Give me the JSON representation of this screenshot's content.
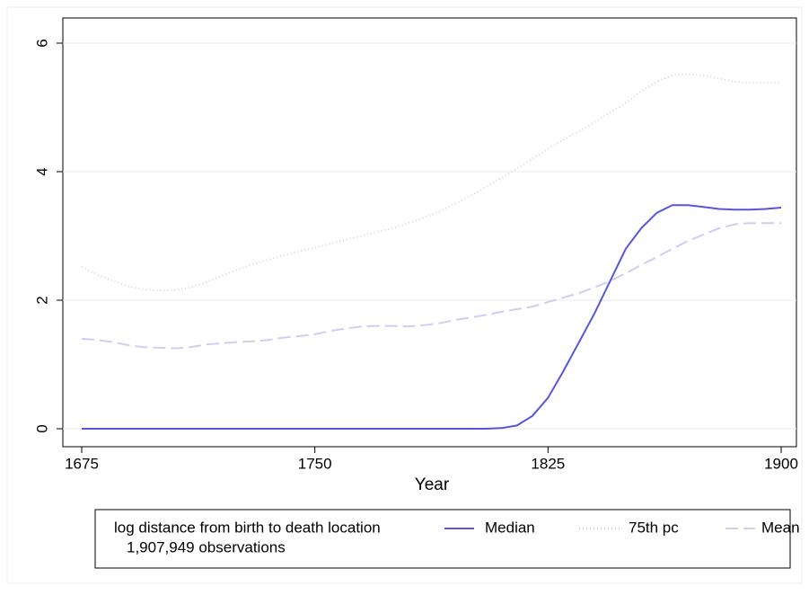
{
  "chart_data": {
    "type": "line",
    "x_label": "Year",
    "x": [
      1675,
      1680,
      1685,
      1690,
      1695,
      1700,
      1705,
      1710,
      1715,
      1720,
      1725,
      1730,
      1735,
      1740,
      1745,
      1750,
      1755,
      1760,
      1765,
      1770,
      1775,
      1780,
      1785,
      1790,
      1795,
      1800,
      1805,
      1810,
      1815,
      1820,
      1825,
      1830,
      1835,
      1840,
      1845,
      1850,
      1855,
      1860,
      1865,
      1870,
      1875,
      1880,
      1885,
      1890,
      1895,
      1900
    ],
    "series": [
      {
        "name": "Median",
        "color": "#5656dc",
        "style": "solid",
        "values": [
          0,
          0,
          0,
          0,
          0,
          0,
          0,
          0,
          0,
          0,
          0,
          0,
          0,
          0,
          0,
          0,
          0,
          0,
          0,
          0,
          0,
          0,
          0,
          0,
          0,
          0,
          0,
          0.01,
          0.05,
          0.2,
          0.48,
          0.9,
          1.35,
          1.8,
          2.3,
          2.8,
          3.12,
          3.36,
          3.48,
          3.48,
          3.45,
          3.42,
          3.41,
          3.41,
          3.42,
          3.44
        ]
      },
      {
        "name": "75th pc",
        "color": "#d4d4e8",
        "style": "dotted",
        "values": [
          2.52,
          2.4,
          2.3,
          2.22,
          2.17,
          2.15,
          2.16,
          2.2,
          2.28,
          2.38,
          2.47,
          2.56,
          2.63,
          2.7,
          2.76,
          2.82,
          2.88,
          2.94,
          3.0,
          3.06,
          3.12,
          3.2,
          3.28,
          3.38,
          3.5,
          3.62,
          3.76,
          3.9,
          4.05,
          4.2,
          4.35,
          4.5,
          4.63,
          4.77,
          4.92,
          5.07,
          5.25,
          5.4,
          5.5,
          5.52,
          5.5,
          5.45,
          5.4,
          5.38,
          5.38,
          5.38
        ]
      },
      {
        "name": "Mean",
        "color": "#d2ccf2",
        "style": "dashed",
        "values": [
          1.4,
          1.38,
          1.35,
          1.3,
          1.27,
          1.26,
          1.25,
          1.27,
          1.31,
          1.33,
          1.35,
          1.36,
          1.38,
          1.42,
          1.44,
          1.47,
          1.52,
          1.56,
          1.59,
          1.6,
          1.6,
          1.59,
          1.61,
          1.64,
          1.69,
          1.73,
          1.77,
          1.82,
          1.86,
          1.9,
          1.97,
          2.04,
          2.11,
          2.2,
          2.3,
          2.42,
          2.55,
          2.67,
          2.8,
          2.92,
          3.02,
          3.12,
          3.18,
          3.2,
          3.2,
          3.2
        ]
      }
    ],
    "xlim": [
      1675,
      1900
    ],
    "xticks": [
      1675,
      1750,
      1825,
      1900
    ],
    "ylim": [
      0,
      6
    ],
    "yticks": [
      0,
      2,
      4,
      6
    ],
    "grid": true,
    "legend_title": "log distance from birth to death location",
    "note": "1,907,949 observations",
    "legend_position": "bottom"
  }
}
